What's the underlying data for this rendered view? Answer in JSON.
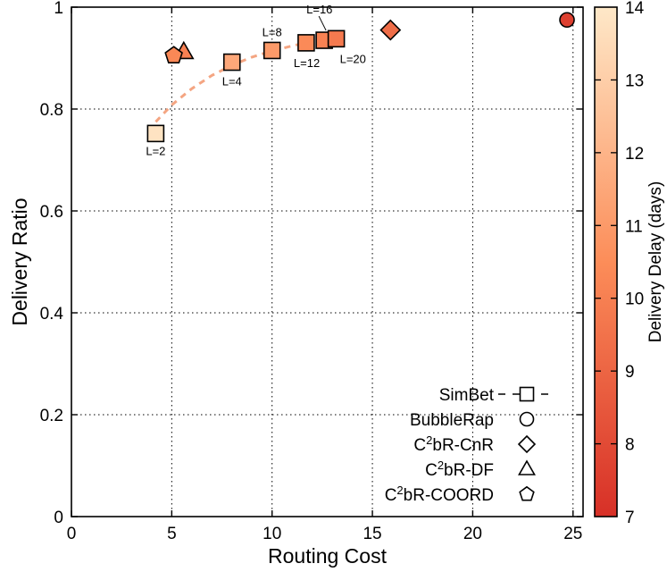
{
  "chart_data": {
    "type": "scatter",
    "xlabel": "Routing Cost",
    "ylabel": "Delivery Ratio",
    "xlim": [
      0,
      25.5
    ],
    "ylim": [
      0,
      1
    ],
    "xticks": [
      0,
      5,
      10,
      15,
      20,
      25
    ],
    "yticks": [
      0,
      0.2,
      0.4,
      0.6,
      0.8,
      1
    ],
    "grid": true,
    "legend_position": "bottom-right",
    "colorbar": {
      "label": "Delivery Delay (days)",
      "range": [
        7,
        14
      ],
      "ticks": [
        7,
        8,
        9,
        10,
        11,
        12,
        13,
        14
      ],
      "colors": [
        "#d73027",
        "#fc8d59",
        "#fee8c8"
      ]
    },
    "series": [
      {
        "name": "SimBet",
        "marker": "square",
        "line": "dashed",
        "points": [
          {
            "x": 4.2,
            "y": 0.752,
            "delay": 13.8,
            "label": "L=2"
          },
          {
            "x": 8.0,
            "y": 0.892,
            "delay": 11.5,
            "label": "L=4"
          },
          {
            "x": 10.0,
            "y": 0.915,
            "delay": 11.0,
            "label": "L=8"
          },
          {
            "x": 11.7,
            "y": 0.93,
            "delay": 10.4,
            "label": "L=12"
          },
          {
            "x": 12.6,
            "y": 0.935,
            "delay": 10.1,
            "label": "L=16"
          },
          {
            "x": 13.2,
            "y": 0.938,
            "delay": 9.8,
            "label": "L=20"
          }
        ]
      },
      {
        "name": "BubbleRap",
        "marker": "circle",
        "points": [
          {
            "x": 24.7,
            "y": 0.975,
            "delay": 7.6
          }
        ]
      },
      {
        "name": "C²bR-CnR",
        "marker": "diamond",
        "points": [
          {
            "x": 15.9,
            "y": 0.955,
            "delay": 9.3
          }
        ]
      },
      {
        "name": "C²bR-DF",
        "marker": "triangle",
        "points": [
          {
            "x": 5.6,
            "y": 0.912,
            "delay": 10.0
          }
        ]
      },
      {
        "name": "C²bR-COORD",
        "marker": "pentagon",
        "points": [
          {
            "x": 5.1,
            "y": 0.905,
            "delay": 10.3
          }
        ]
      }
    ],
    "legend": [
      {
        "base": "SimBet",
        "sup": "",
        "rest": ""
      },
      {
        "base": "BubbleRap",
        "sup": "",
        "rest": ""
      },
      {
        "base": "C",
        "sup": "2",
        "rest": "bR-CnR"
      },
      {
        "base": "C",
        "sup": "2",
        "rest": "bR-DF"
      },
      {
        "base": "C",
        "sup": "2",
        "rest": "bR-COORD"
      }
    ],
    "fit_curve": {
      "color": "#f4a582",
      "x": [
        4.2,
        5.0,
        6.0,
        7.0,
        8.0,
        9.0,
        10.0,
        11.0,
        11.7
      ],
      "y": [
        0.775,
        0.808,
        0.84,
        0.866,
        0.886,
        0.902,
        0.914,
        0.924,
        0.93
      ]
    }
  }
}
